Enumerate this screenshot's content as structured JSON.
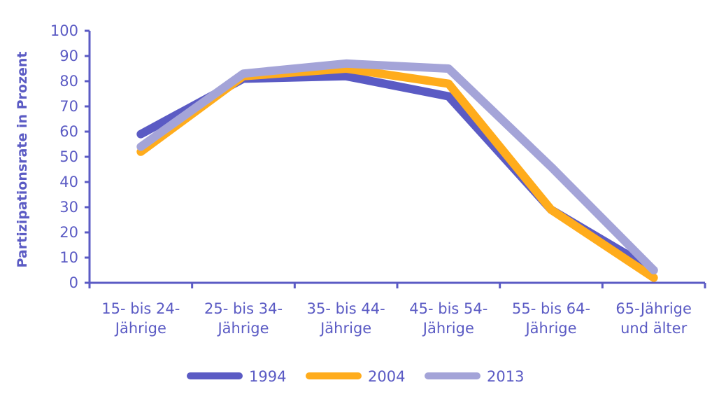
{
  "colors": {
    "axis": "#5b5bc4",
    "text": "#5b5bc4",
    "s1994": "#5b5bc4",
    "s2004": "#ffac1c",
    "s2013": "#a4a4d8"
  },
  "chart_data": {
    "type": "line",
    "title": "",
    "xlabel": "",
    "ylabel": "Partizipationsrate in Prozent",
    "ylim": [
      0,
      100
    ],
    "yticks": [
      0,
      10,
      20,
      30,
      40,
      50,
      60,
      70,
      80,
      90,
      100
    ],
    "grid": false,
    "legend_position": "bottom",
    "categories": [
      [
        "15- bis 24-",
        "Jährige"
      ],
      [
        "25- bis 34-",
        "Jährige"
      ],
      [
        "35- bis 44-",
        "Jährige"
      ],
      [
        "45- bis 54-",
        "Jährige"
      ],
      [
        "55- bis 64-",
        "Jährige"
      ],
      [
        "65-Jährige",
        "und älter"
      ]
    ],
    "series": [
      {
        "name": "1994",
        "color": "#5b5bc4",
        "values": [
          59,
          81,
          82,
          74,
          29,
          5
        ]
      },
      {
        "name": "2004",
        "color": "#ffac1c",
        "values": [
          52,
          82,
          85,
          79,
          29,
          2
        ]
      },
      {
        "name": "2013",
        "color": "#a4a4d8",
        "values": [
          54,
          83,
          87,
          85,
          46,
          5
        ]
      }
    ]
  }
}
